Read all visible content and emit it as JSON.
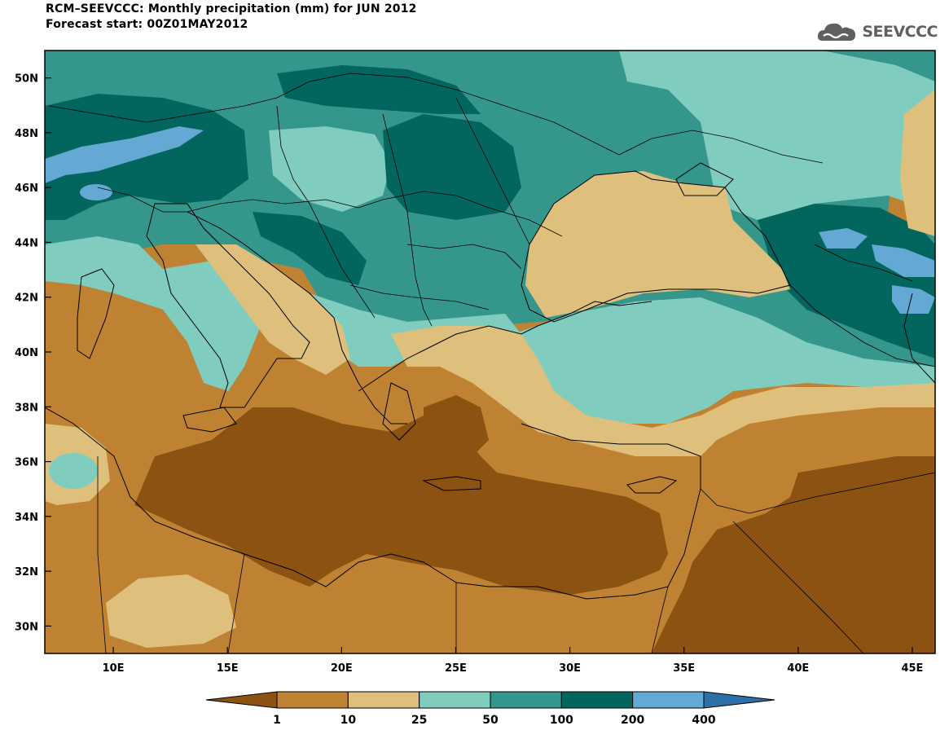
{
  "header": {
    "title": "RCM–SEEVCCC: Monthly precipitation (mm) for JUN 2012",
    "subtitle": "Forecast start: 00Z01MAY2012"
  },
  "logo": {
    "text": "SEEVCCC",
    "icon": "cloud-logo-icon"
  },
  "map": {
    "lon_range": [
      7,
      46
    ],
    "lat_range": [
      29,
      51
    ],
    "lon_ticks": [
      "10E",
      "15E",
      "20E",
      "25E",
      "30E",
      "35E",
      "40E",
      "45E"
    ],
    "lat_ticks": [
      "50N",
      "48N",
      "46N",
      "44N",
      "42N",
      "40N",
      "38N",
      "36N",
      "34N",
      "32N",
      "30N"
    ]
  },
  "colorbar": {
    "labels": [
      "1",
      "10",
      "25",
      "50",
      "100",
      "200",
      "400"
    ],
    "colors": [
      "#8B5212",
      "#BF8233",
      "#DEC07C",
      "#80CDC0",
      "#35968C",
      "#02665E",
      "#64A9D4",
      "#2D6FA8"
    ]
  }
}
